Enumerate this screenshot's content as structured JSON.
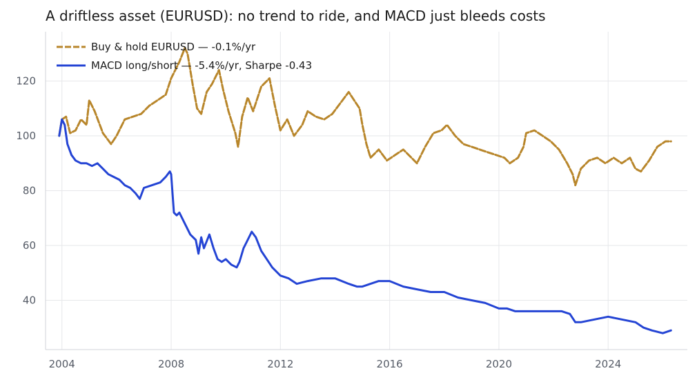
{
  "chart_data": {
    "type": "line",
    "title": "A driftless asset (EURUSD): no trend to ride, and MACD just bleeds costs",
    "xlabel": "",
    "ylabel": "",
    "xlim": [
      2003.4,
      2026.9
    ],
    "ylim": [
      22,
      138
    ],
    "x_ticks": [
      2004,
      2008,
      2012,
      2016,
      2020,
      2024
    ],
    "x_tick_labels": [
      "2004",
      "2008",
      "2012",
      "2016",
      "2020",
      "2024"
    ],
    "y_ticks": [
      40,
      60,
      80,
      100,
      120
    ],
    "y_tick_labels": [
      "40",
      "60",
      "80",
      "100",
      "120"
    ],
    "grid": true,
    "legend": "top-left",
    "series": [
      {
        "name": "Buy & hold EURUSD — -0.1%/yr",
        "color": "#b8862b",
        "style": "dashed",
        "x": [
          2003.9,
          2004.0,
          2004.15,
          2004.3,
          2004.5,
          2004.7,
          2004.9,
          2005.0,
          2005.2,
          2005.5,
          2005.8,
          2006.0,
          2006.3,
          2006.6,
          2006.9,
          2007.2,
          2007.5,
          2007.8,
          2008.0,
          2008.3,
          2008.5,
          2008.6,
          2008.8,
          2008.95,
          2009.1,
          2009.3,
          2009.5,
          2009.75,
          2009.9,
          2010.1,
          2010.35,
          2010.45,
          2010.6,
          2010.8,
          2011.0,
          2011.3,
          2011.6,
          2011.8,
          2012.0,
          2012.25,
          2012.5,
          2012.8,
          2013.0,
          2013.3,
          2013.6,
          2013.9,
          2014.2,
          2014.5,
          2014.7,
          2014.9,
          2015.0,
          2015.15,
          2015.3,
          2015.6,
          2015.9,
          2016.2,
          2016.5,
          2016.8,
          2017.0,
          2017.3,
          2017.6,
          2017.9,
          2018.1,
          2018.4,
          2018.7,
          2019.0,
          2019.3,
          2019.6,
          2019.9,
          2020.2,
          2020.4,
          2020.7,
          2020.9,
          2021.0,
          2021.3,
          2021.6,
          2021.9,
          2022.2,
          2022.5,
          2022.7,
          2022.8,
          2023.0,
          2023.3,
          2023.6,
          2023.9,
          2024.2,
          2024.5,
          2024.8,
          2025.0,
          2025.2,
          2025.5,
          2025.8,
          2026.1,
          2026.3
        ],
        "y": [
          100,
          106,
          107,
          101,
          102,
          106,
          104,
          113,
          109,
          101,
          97,
          100,
          106,
          107,
          108,
          111,
          113,
          115,
          121,
          127,
          132,
          130,
          118,
          110,
          108,
          116,
          119,
          124,
          117,
          109,
          101,
          96,
          107,
          114,
          109,
          118,
          121,
          111,
          102,
          106,
          100,
          104,
          109,
          107,
          106,
          108,
          112,
          116,
          113,
          110,
          104,
          97,
          92,
          95,
          91,
          93,
          95,
          92,
          90,
          96,
          101,
          102,
          104,
          100,
          97,
          96,
          95,
          94,
          93,
          92,
          90,
          92,
          96,
          101,
          102,
          100,
          98,
          95,
          90,
          86,
          82,
          88,
          91,
          92,
          90,
          92,
          90,
          92,
          88,
          87,
          91,
          96,
          98,
          98
        ]
      },
      {
        "name": "MACD long/short — -5.4%/yr, Sharpe -0.43",
        "color": "#2444d4",
        "style": "solid",
        "x": [
          2003.9,
          2004.0,
          2004.1,
          2004.2,
          2004.35,
          2004.5,
          2004.7,
          2004.9,
          2005.1,
          2005.3,
          2005.5,
          2005.7,
          2005.9,
          2006.1,
          2006.3,
          2006.5,
          2006.7,
          2006.85,
          2007.0,
          2007.3,
          2007.6,
          2007.8,
          2007.95,
          2008.0,
          2008.1,
          2008.2,
          2008.3,
          2008.5,
          2008.7,
          2008.9,
          2009.0,
          2009.1,
          2009.2,
          2009.4,
          2009.55,
          2009.7,
          2009.85,
          2010.0,
          2010.2,
          2010.4,
          2010.5,
          2010.65,
          2010.8,
          2010.95,
          2011.1,
          2011.3,
          2011.5,
          2011.7,
          2012.0,
          2012.3,
          2012.6,
          2013.0,
          2013.5,
          2014.0,
          2014.5,
          2014.8,
          2015.0,
          2015.3,
          2015.6,
          2016.0,
          2016.5,
          2017.0,
          2017.5,
          2018.0,
          2018.5,
          2019.0,
          2019.5,
          2020.0,
          2020.3,
          2020.6,
          2021.0,
          2021.5,
          2022.0,
          2022.3,
          2022.6,
          2022.8,
          2023.0,
          2023.5,
          2024.0,
          2024.5,
          2025.0,
          2025.3,
          2025.6,
          2026.0,
          2026.3
        ],
        "y": [
          100,
          106,
          104,
          97,
          93,
          91,
          90,
          90,
          89,
          90,
          88,
          86,
          85,
          84,
          82,
          81,
          79,
          77,
          81,
          82,
          83,
          85,
          87,
          86,
          72,
          71,
          72,
          68,
          64,
          62,
          57,
          63,
          59,
          64,
          59,
          55,
          54,
          55,
          53,
          52,
          54,
          59,
          62,
          65,
          63,
          58,
          55,
          52,
          49,
          48,
          46,
          47,
          48,
          48,
          46,
          45,
          45,
          46,
          47,
          47,
          45,
          44,
          43,
          43,
          41,
          40,
          39,
          37,
          37,
          36,
          36,
          36,
          36,
          36,
          35,
          32,
          32,
          33,
          34,
          33,
          32,
          30,
          29,
          28,
          29
        ]
      }
    ]
  }
}
